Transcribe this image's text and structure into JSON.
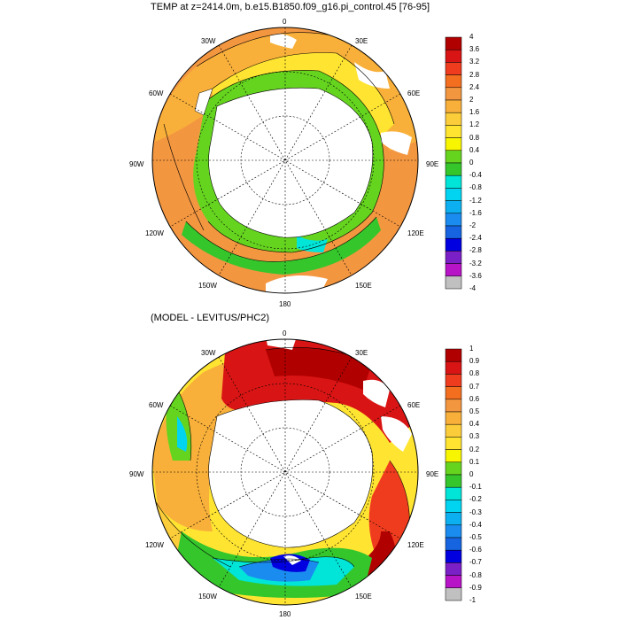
{
  "panel_top": {
    "title": "TEMP at z=2414.0m, b.e15.B1850.f09_g16.pi_control.45 [76-95]",
    "lon_labels": {
      "n0": "0",
      "n30e": "30E",
      "n60e": "60E",
      "n90e": "90E",
      "n120e": "120E",
      "n150e": "150E",
      "n180": "180",
      "n150w": "150W",
      "n120w": "120W",
      "n90w": "90W",
      "n60w": "60W",
      "n30w": "30W"
    },
    "colorbar": {
      "labels": [
        "4",
        "3.6",
        "3.2",
        "2.8",
        "2.4",
        "2",
        "1.6",
        "1.2",
        "0.8",
        "0.4",
        "0",
        "-0.4",
        "-0.8",
        "-1.2",
        "-1.6",
        "-2",
        "-2.4",
        "-2.8",
        "-3.2",
        "-3.6",
        "-4"
      ],
      "colors": [
        "#b10000",
        "#d91414",
        "#f03c1e",
        "#f36f1f",
        "#f39640",
        "#f8b03a",
        "#fccd3a",
        "#ffe432",
        "#f8f500",
        "#65d41f",
        "#35c62c",
        "#00e5d8",
        "#00d4f0",
        "#0cb0f0",
        "#1a8cf0",
        "#1664e0",
        "#0000e0",
        "#7b1fc6",
        "#b614c6",
        "#c0c0c0",
        "#707070"
      ]
    }
  },
  "panel_bottom": {
    "title": "(MODEL - LEVITUS/PHC2)",
    "lon_labels": {
      "n0": "0",
      "n30e": "30E",
      "n60e": "60E",
      "n90e": "90E",
      "n120e": "120E",
      "n150e": "150E",
      "n180": "180",
      "n150w": "150W",
      "n120w": "120W",
      "n90w": "90W",
      "n60w": "60W",
      "n30w": "30W"
    },
    "colorbar": {
      "labels": [
        "1",
        "0.9",
        "0.8",
        "0.7",
        "0.6",
        "0.5",
        "0.4",
        "0.3",
        "0.2",
        "0.1",
        "0",
        "-0.1",
        "-0.2",
        "-0.3",
        "-0.4",
        "-0.5",
        "-0.6",
        "-0.7",
        "-0.8",
        "-0.9",
        "-1"
      ],
      "colors": [
        "#b10000",
        "#d91414",
        "#f03c1e",
        "#f36f1f",
        "#f39640",
        "#f8b03a",
        "#fccd3a",
        "#ffe432",
        "#f8f500",
        "#65d41f",
        "#35c62c",
        "#00e5d8",
        "#00d4f0",
        "#0cb0f0",
        "#1a8cf0",
        "#1664e0",
        "#0000e0",
        "#7b1fc6",
        "#b614c6",
        "#c0c0c0",
        "#707070"
      ]
    }
  }
}
